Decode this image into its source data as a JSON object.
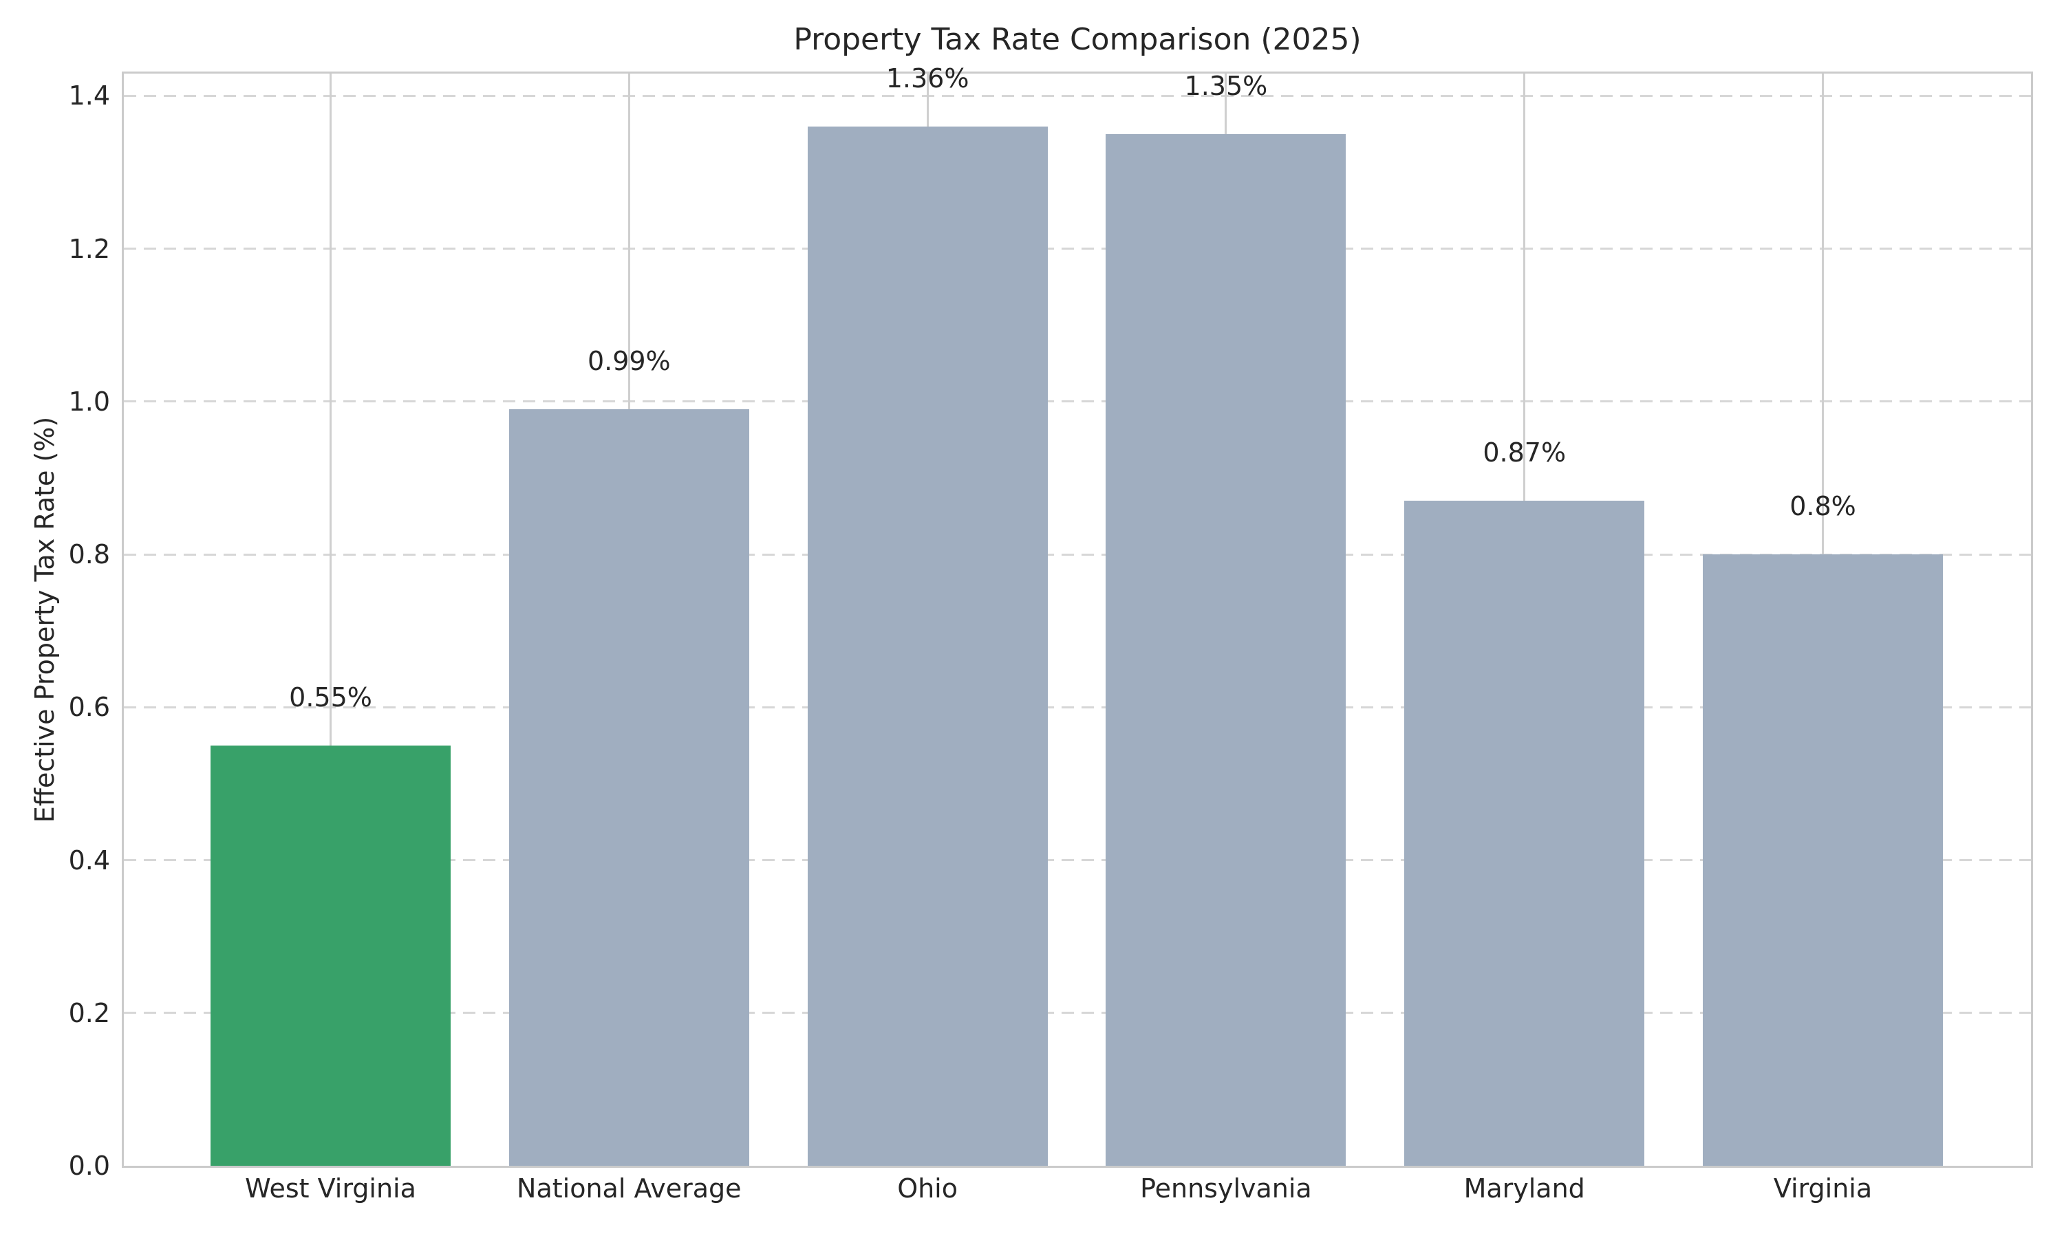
{
  "figure": {
    "background": "#ffffff",
    "text_color": "#262626",
    "spine_color": "#cbcbcb",
    "grid_dashed_color": "#d7d7d7",
    "grid_solid_color": "#cfcfcf"
  },
  "chart_data": {
    "type": "bar",
    "title": "Property Tax Rate Comparison (2025)",
    "xlabel": "",
    "ylabel": "Effective Property Tax Rate (%)",
    "categories": [
      "West Virginia",
      "National Average",
      "Ohio",
      "Pennsylvania",
      "Maryland",
      "Virginia"
    ],
    "values": [
      0.55,
      0.99,
      1.36,
      1.35,
      0.87,
      0.8
    ],
    "bar_labels": [
      "0.55%",
      "0.99%",
      "1.36%",
      "1.35%",
      "0.87%",
      "0.8%"
    ],
    "bar_colors": [
      "#38a169",
      "#a0aec0",
      "#a0aec0",
      "#a0aec0",
      "#a0aec0",
      "#a0aec0"
    ],
    "highlight_color": "#38a169",
    "default_color": "#a0aec0",
    "highlighted_category": "West Virginia",
    "ylim": [
      0,
      1.43
    ],
    "ytick_labels": [
      "0.0",
      "0.2",
      "0.4",
      "0.6",
      "0.8",
      "1.0",
      "1.2",
      "1.4"
    ],
    "grid": {
      "horizontal": "dashed",
      "vertical": "solid-at-bar-centers"
    },
    "legend_position": "none"
  }
}
